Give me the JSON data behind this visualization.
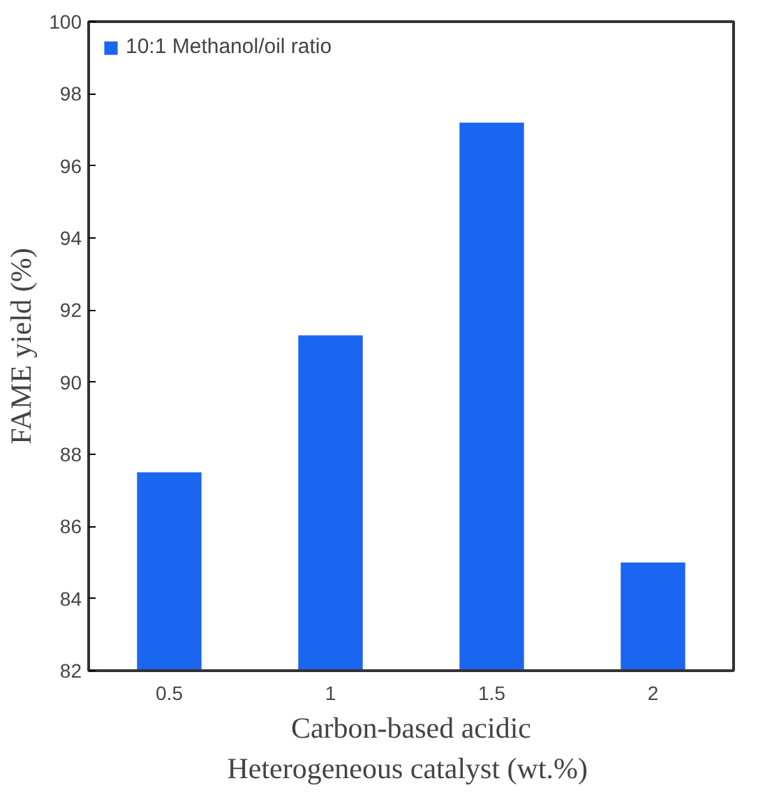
{
  "chart_data": {
    "type": "bar",
    "categories": [
      "0.5",
      "1",
      "1.5",
      "2"
    ],
    "series": [
      {
        "name": "10:1 Methanol/oil ratio",
        "color": "#1a66f0",
        "values": [
          87.5,
          91.3,
          97.2,
          85.0
        ]
      }
    ],
    "xlabel": "Carbon-based acidic\nHeterogeneous  catalyst (wt.%)",
    "ylabel": "FAME yield (%)",
    "ylim": [
      82,
      100
    ],
    "yticks": [
      82,
      84,
      86,
      88,
      90,
      92,
      94,
      96,
      98,
      100
    ],
    "grid": false,
    "legend": "top left"
  }
}
